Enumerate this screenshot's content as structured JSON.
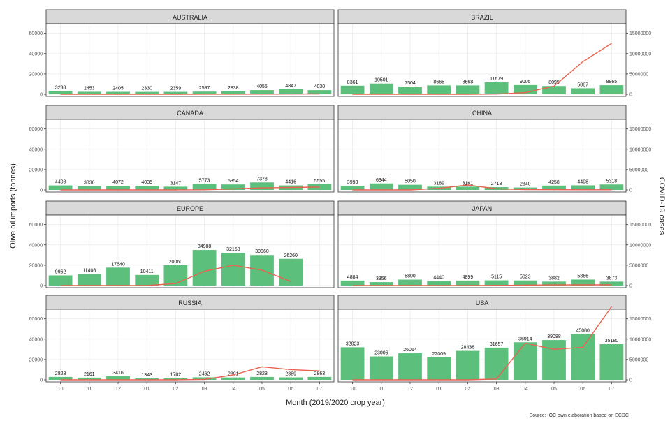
{
  "figure": {
    "ylabel_left": "Olive oil imports (tonnes)",
    "ylabel_right": "COVID-19 cases",
    "xlabel": "Month (2019/2020 crop year)",
    "source": "Source: IOC own elaboration based on ECDC",
    "y_ticks_left": [
      "0",
      "20000",
      "40000",
      "60000"
    ],
    "y_ticks_right": [
      "0",
      "5000000",
      "10000000",
      "15000000"
    ],
    "x_ticks": [
      "10",
      "11",
      "12",
      "01",
      "02",
      "03",
      "04",
      "05",
      "06",
      "07"
    ],
    "colors": {
      "bar": "#5cbf7c",
      "line": "#e8624f",
      "strip": "#d9d9d9",
      "panel_border": "#333333",
      "grid": "#ebebeb"
    }
  },
  "chart_data": [
    {
      "type": "bar",
      "title": "AUSTRALIA",
      "categories": [
        "10",
        "11",
        "12",
        "01",
        "02",
        "03",
        "04",
        "05",
        "06",
        "07"
      ],
      "values": [
        3238,
        2453,
        2405,
        2330,
        2359,
        2597,
        2838,
        4055,
        4847,
        4030
      ],
      "labels": [
        "3238",
        "2453",
        "2405",
        "2330",
        "2359",
        "2597",
        "2838",
        "4055",
        "4847",
        "4030"
      ],
      "covid_cases": [
        0,
        0,
        0,
        0,
        0,
        10000,
        20000,
        30000,
        50000,
        80000
      ],
      "ylim_left": [
        0,
        68000
      ],
      "ylim_right": [
        0,
        17000000
      ]
    },
    {
      "type": "bar",
      "title": "BRAZIL",
      "categories": [
        "10",
        "11",
        "12",
        "01",
        "02",
        "03",
        "04",
        "05",
        "06",
        "07"
      ],
      "values": [
        8361,
        10501,
        7504,
        8665,
        8668,
        11679,
        9005,
        8095,
        5887,
        8865
      ],
      "labels": [
        "8361",
        "10501",
        "7504",
        "8665",
        "8668",
        "11679",
        "9005",
        "8095",
        "5887",
        "8865"
      ],
      "covid_cases": [
        0,
        0,
        0,
        0,
        0,
        50000,
        400000,
        2000000,
        8000000,
        12500000
      ],
      "ylim_left": [
        0,
        68000
      ],
      "ylim_right": [
        0,
        17000000
      ]
    },
    {
      "type": "bar",
      "title": "CANADA",
      "categories": [
        "10",
        "11",
        "12",
        "01",
        "02",
        "03",
        "04",
        "05",
        "06",
        "07"
      ],
      "values": [
        4408,
        3836,
        4072,
        4035,
        3147,
        5773,
        5354,
        7378,
        4416,
        5555
      ],
      "labels": [
        "4408",
        "3836",
        "4072",
        "4035",
        "3147",
        "5773",
        "5354",
        "7378",
        "4416",
        "5555"
      ],
      "covid_cases": [
        0,
        0,
        0,
        0,
        0,
        40000,
        250000,
        500000,
        600000,
        700000
      ],
      "ylim_left": [
        0,
        68000
      ],
      "ylim_right": [
        0,
        17000000
      ]
    },
    {
      "type": "bar",
      "title": "CHINA",
      "categories": [
        "10",
        "11",
        "12",
        "01",
        "02",
        "03",
        "04",
        "05",
        "06",
        "07"
      ],
      "values": [
        3993,
        6344,
        5050,
        3189,
        3161,
        2718,
        2340,
        4258,
        4498,
        5318
      ],
      "labels": [
        "3993",
        "6344",
        "5050",
        "3189",
        "3161",
        "2718",
        "2340",
        "4258",
        "4498",
        "5318"
      ],
      "covid_cases": [
        0,
        0,
        0,
        400000,
        1200000,
        300000,
        80000,
        50000,
        40000,
        40000
      ],
      "ylim_left": [
        0,
        68000
      ],
      "ylim_right": [
        0,
        17000000
      ]
    },
    {
      "type": "bar",
      "title": "EUROPE",
      "categories": [
        "10",
        "11",
        "12",
        "01",
        "02",
        "03",
        "04",
        "05",
        "06",
        "07"
      ],
      "values": [
        9962,
        11408,
        17640,
        10411,
        20060,
        34988,
        32158,
        30060,
        26260
      ],
      "labels": [
        "9962",
        "11408",
        "17640",
        "10411",
        "20060",
        "34988",
        "32158",
        "30060",
        "26260"
      ],
      "covid_cases": [
        0,
        0,
        0,
        0,
        500000,
        3500000,
        5000000,
        3800000,
        1000000
      ],
      "ylim_left": [
        0,
        68000
      ],
      "ylim_right": [
        0,
        17000000
      ]
    },
    {
      "type": "bar",
      "title": "JAPAN",
      "categories": [
        "10",
        "11",
        "12",
        "01",
        "02",
        "03",
        "04",
        "05",
        "06",
        "07"
      ],
      "values": [
        4884,
        3356,
        5800,
        4440,
        4899,
        5115,
        5023,
        3882,
        5866,
        3873
      ],
      "labels": [
        "4884",
        "3356",
        "5800",
        "4440",
        "4899",
        "5115",
        "5023",
        "3882",
        "5866",
        "3873"
      ],
      "covid_cases": [
        0,
        0,
        0,
        0,
        20000,
        40000,
        100000,
        150000,
        170000,
        180000
      ],
      "ylim_left": [
        0,
        68000
      ],
      "ylim_right": [
        0,
        17000000
      ]
    },
    {
      "type": "bar",
      "title": "RUSSIA",
      "categories": [
        "10",
        "11",
        "12",
        "01",
        "02",
        "03",
        "04",
        "05",
        "06",
        "07"
      ],
      "values": [
        2828,
        2161,
        3416,
        1343,
        1782,
        2462,
        2301,
        2828,
        2389,
        2863
      ],
      "labels": [
        "2828",
        "2161",
        "3416",
        "1343",
        "1782",
        "2462",
        "2301",
        "2828",
        "2389",
        "2863"
      ],
      "covid_cases": [
        0,
        0,
        0,
        0,
        0,
        100000,
        1200000,
        3200000,
        2500000,
        2200000
      ],
      "ylim_left": [
        0,
        68000
      ],
      "ylim_right": [
        0,
        17000000
      ]
    },
    {
      "type": "bar",
      "title": "USA",
      "categories": [
        "10",
        "11",
        "12",
        "01",
        "02",
        "03",
        "04",
        "05",
        "06",
        "07"
      ],
      "values": [
        32023,
        23006,
        26064,
        22009,
        28438,
        31657,
        36914,
        39088,
        45080,
        35180
      ],
      "labels": [
        "32023",
        "23006",
        "26064",
        "22009",
        "28438",
        "31657",
        "36914",
        "39088",
        "45080",
        "35180"
      ],
      "covid_cases": [
        0,
        0,
        0,
        0,
        0,
        200000,
        9000000,
        7500000,
        8000000,
        18000000
      ],
      "ylim_left": [
        0,
        68000
      ],
      "ylim_right": [
        0,
        17000000
      ]
    }
  ]
}
